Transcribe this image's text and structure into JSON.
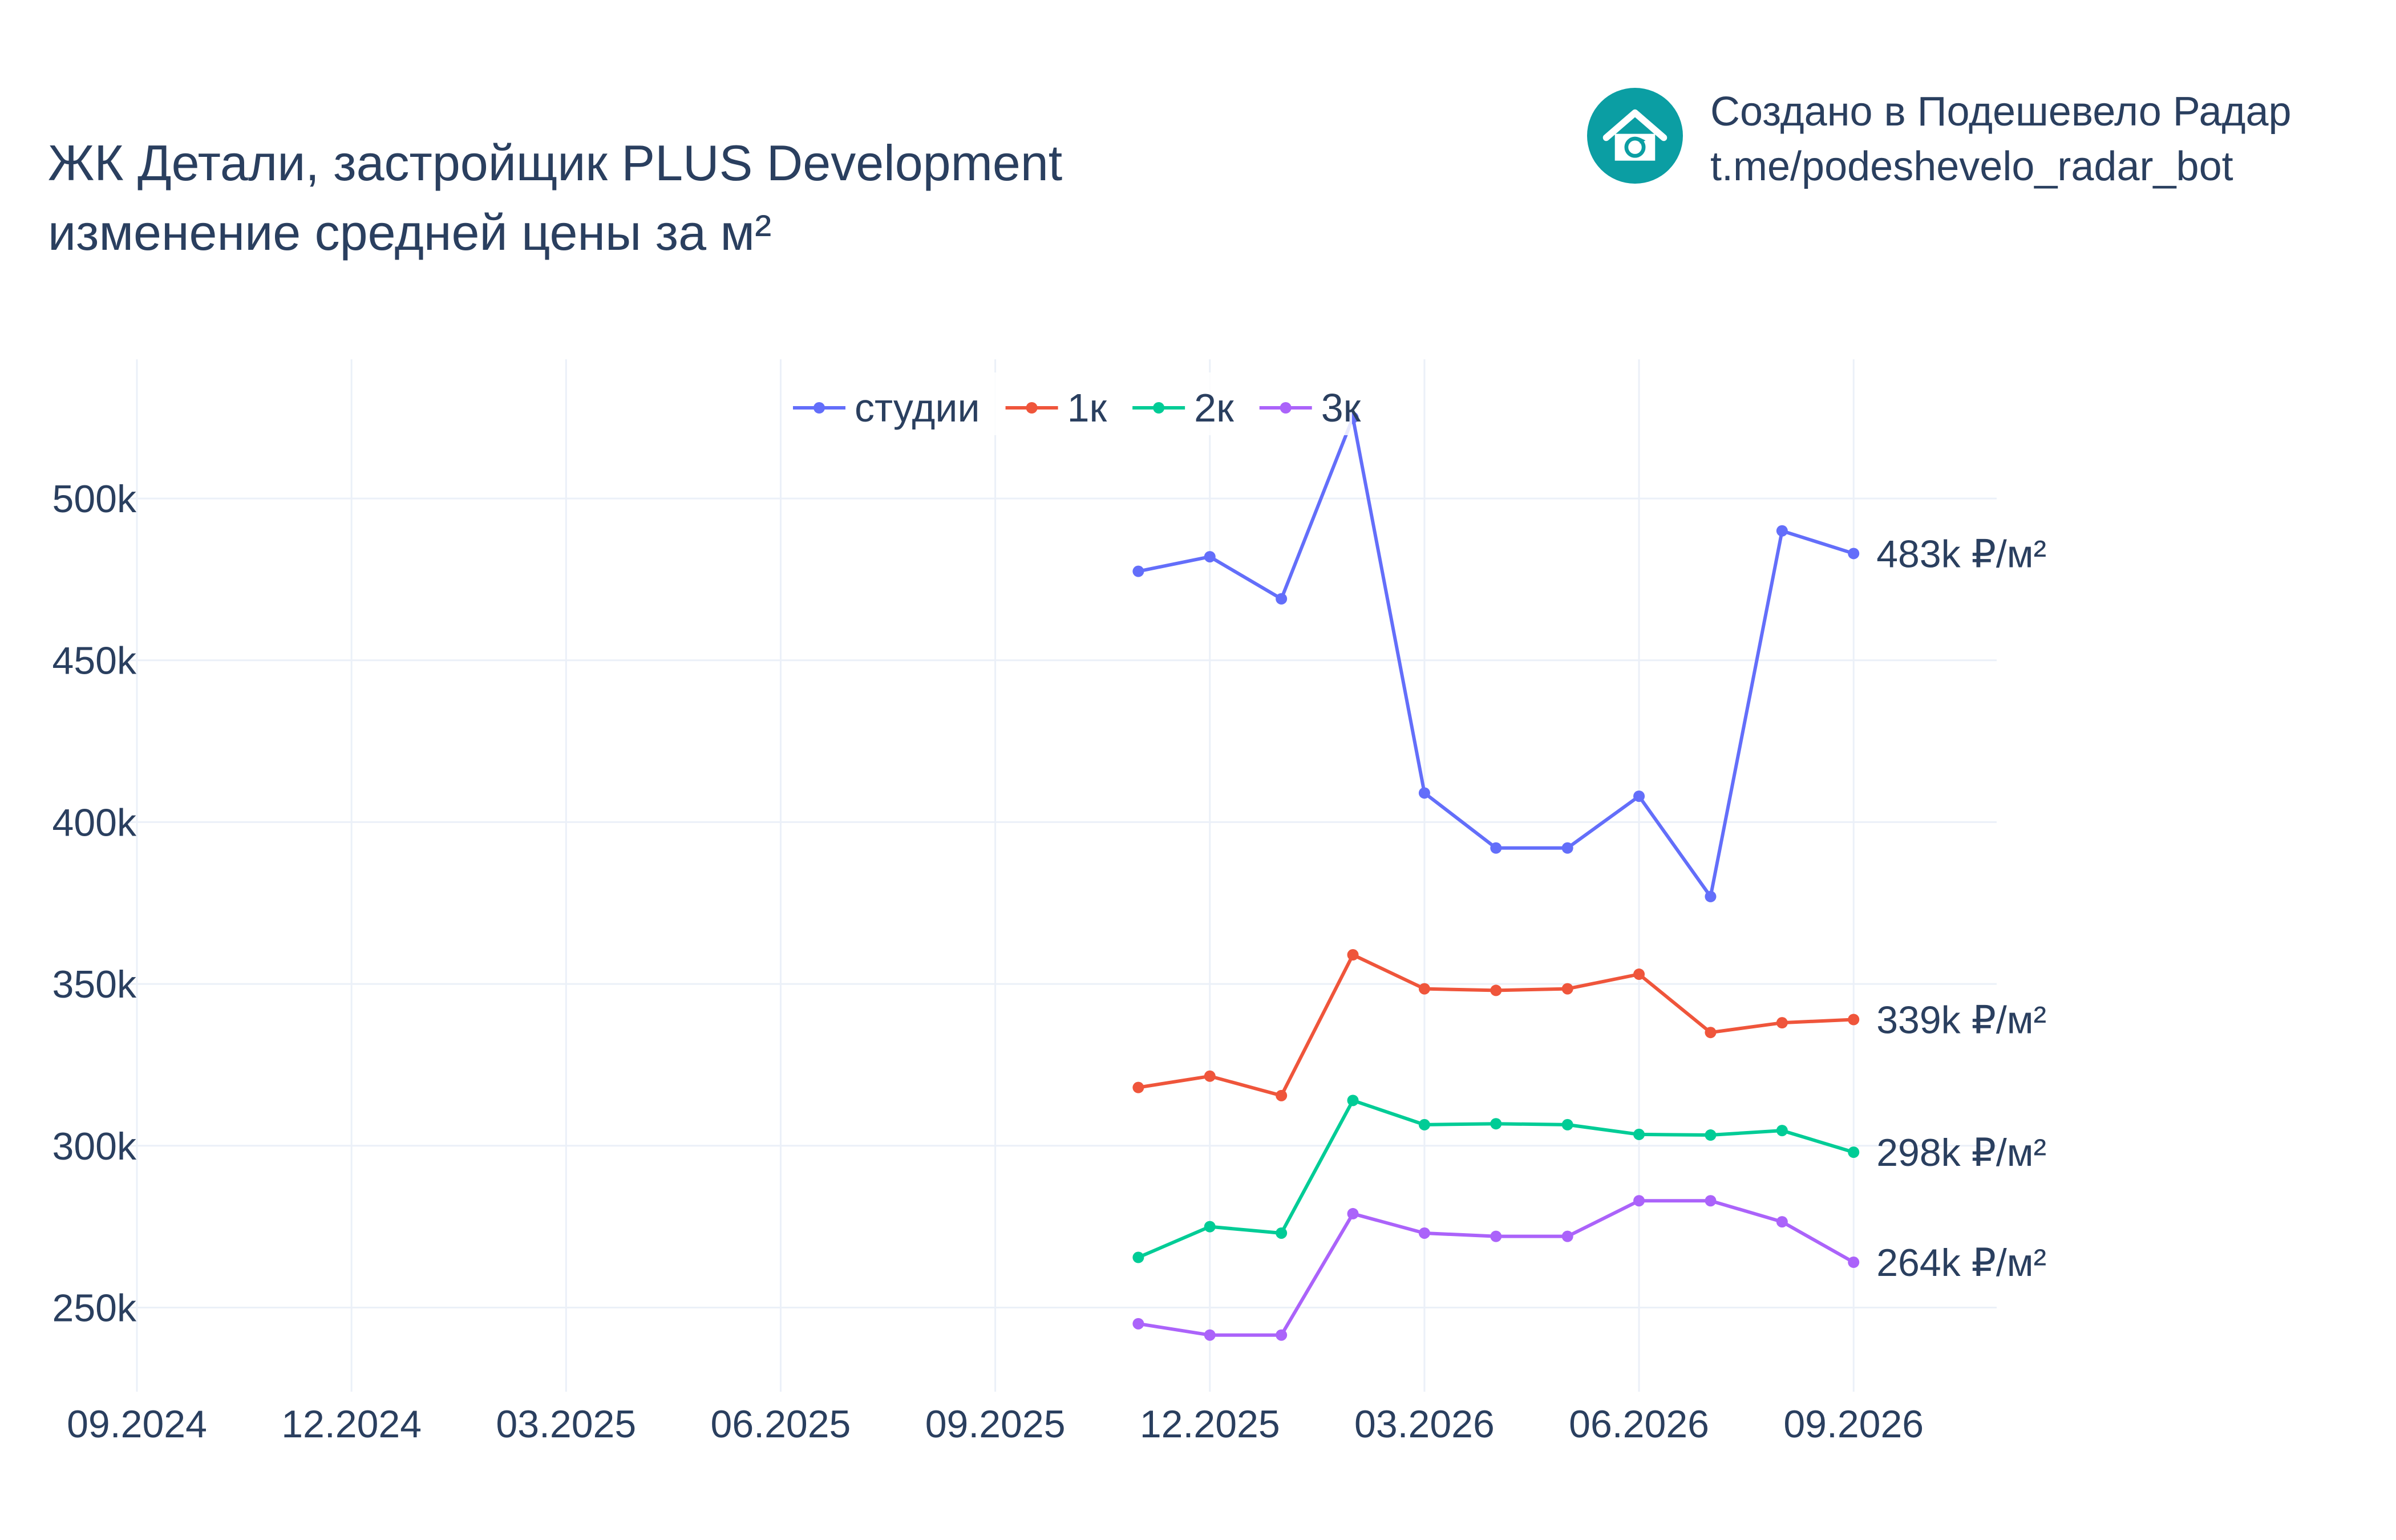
{
  "header": {
    "title_line1": "ЖК Детали, застройщик PLUS Development",
    "title_line2": "изменение средней цены за м²"
  },
  "branding": {
    "line1": "Создано в Подешевело Радар",
    "line2": "t.me/podeshevelo_radar_bot",
    "logo_icon": "house-refresh-icon",
    "logo_color": "#0b9ea3"
  },
  "chart_data": {
    "type": "line",
    "xlabel": "",
    "ylabel": "",
    "x_tick_labels": [
      "09.2024",
      "12.2024",
      "03.2025",
      "06.2025",
      "09.2025",
      "12.2025",
      "03.2026",
      "06.2026",
      "09.2026"
    ],
    "x": [
      "2025-11",
      "2025-12",
      "2026-01",
      "2026-02",
      "2026-03",
      "2026-04",
      "2026-05",
      "2026-06",
      "2026-07",
      "2026-08",
      "2026-09"
    ],
    "xlim": [
      "2024-09",
      "2026-11"
    ],
    "y_ticks": [
      250000,
      300000,
      350000,
      400000,
      450000,
      500000
    ],
    "y_tick_labels": [
      "250k",
      "300k",
      "350k",
      "400k",
      "450k",
      "500k"
    ],
    "ylim": [
      224000,
      543000
    ],
    "grid": true,
    "legend_position": "top-center",
    "series": [
      {
        "name": "студии",
        "color": "#636efa",
        "end_label": "483k ₽/м²",
        "values": [
          477500,
          482000,
          469000,
          525000,
          409000,
          392000,
          392000,
          408000,
          377000,
          490000,
          483000
        ]
      },
      {
        "name": "1к",
        "color": "#ef553b",
        "end_label": "339k ₽/м²",
        "values": [
          318000,
          321500,
          315500,
          359000,
          348500,
          348000,
          348500,
          353000,
          335000,
          338000,
          339000
        ]
      },
      {
        "name": "2к",
        "color": "#00cc96",
        "end_label": "298k ₽/м²",
        "values": [
          265500,
          275000,
          273000,
          314000,
          306500,
          306800,
          306500,
          303500,
          303300,
          304700,
          298000
        ]
      },
      {
        "name": "3к",
        "color": "#ab63fa",
        "end_label": "264k ₽/м²",
        "values": [
          245000,
          241500,
          241500,
          279000,
          273000,
          272000,
          272000,
          283000,
          283000,
          276500,
          264000
        ]
      }
    ]
  }
}
